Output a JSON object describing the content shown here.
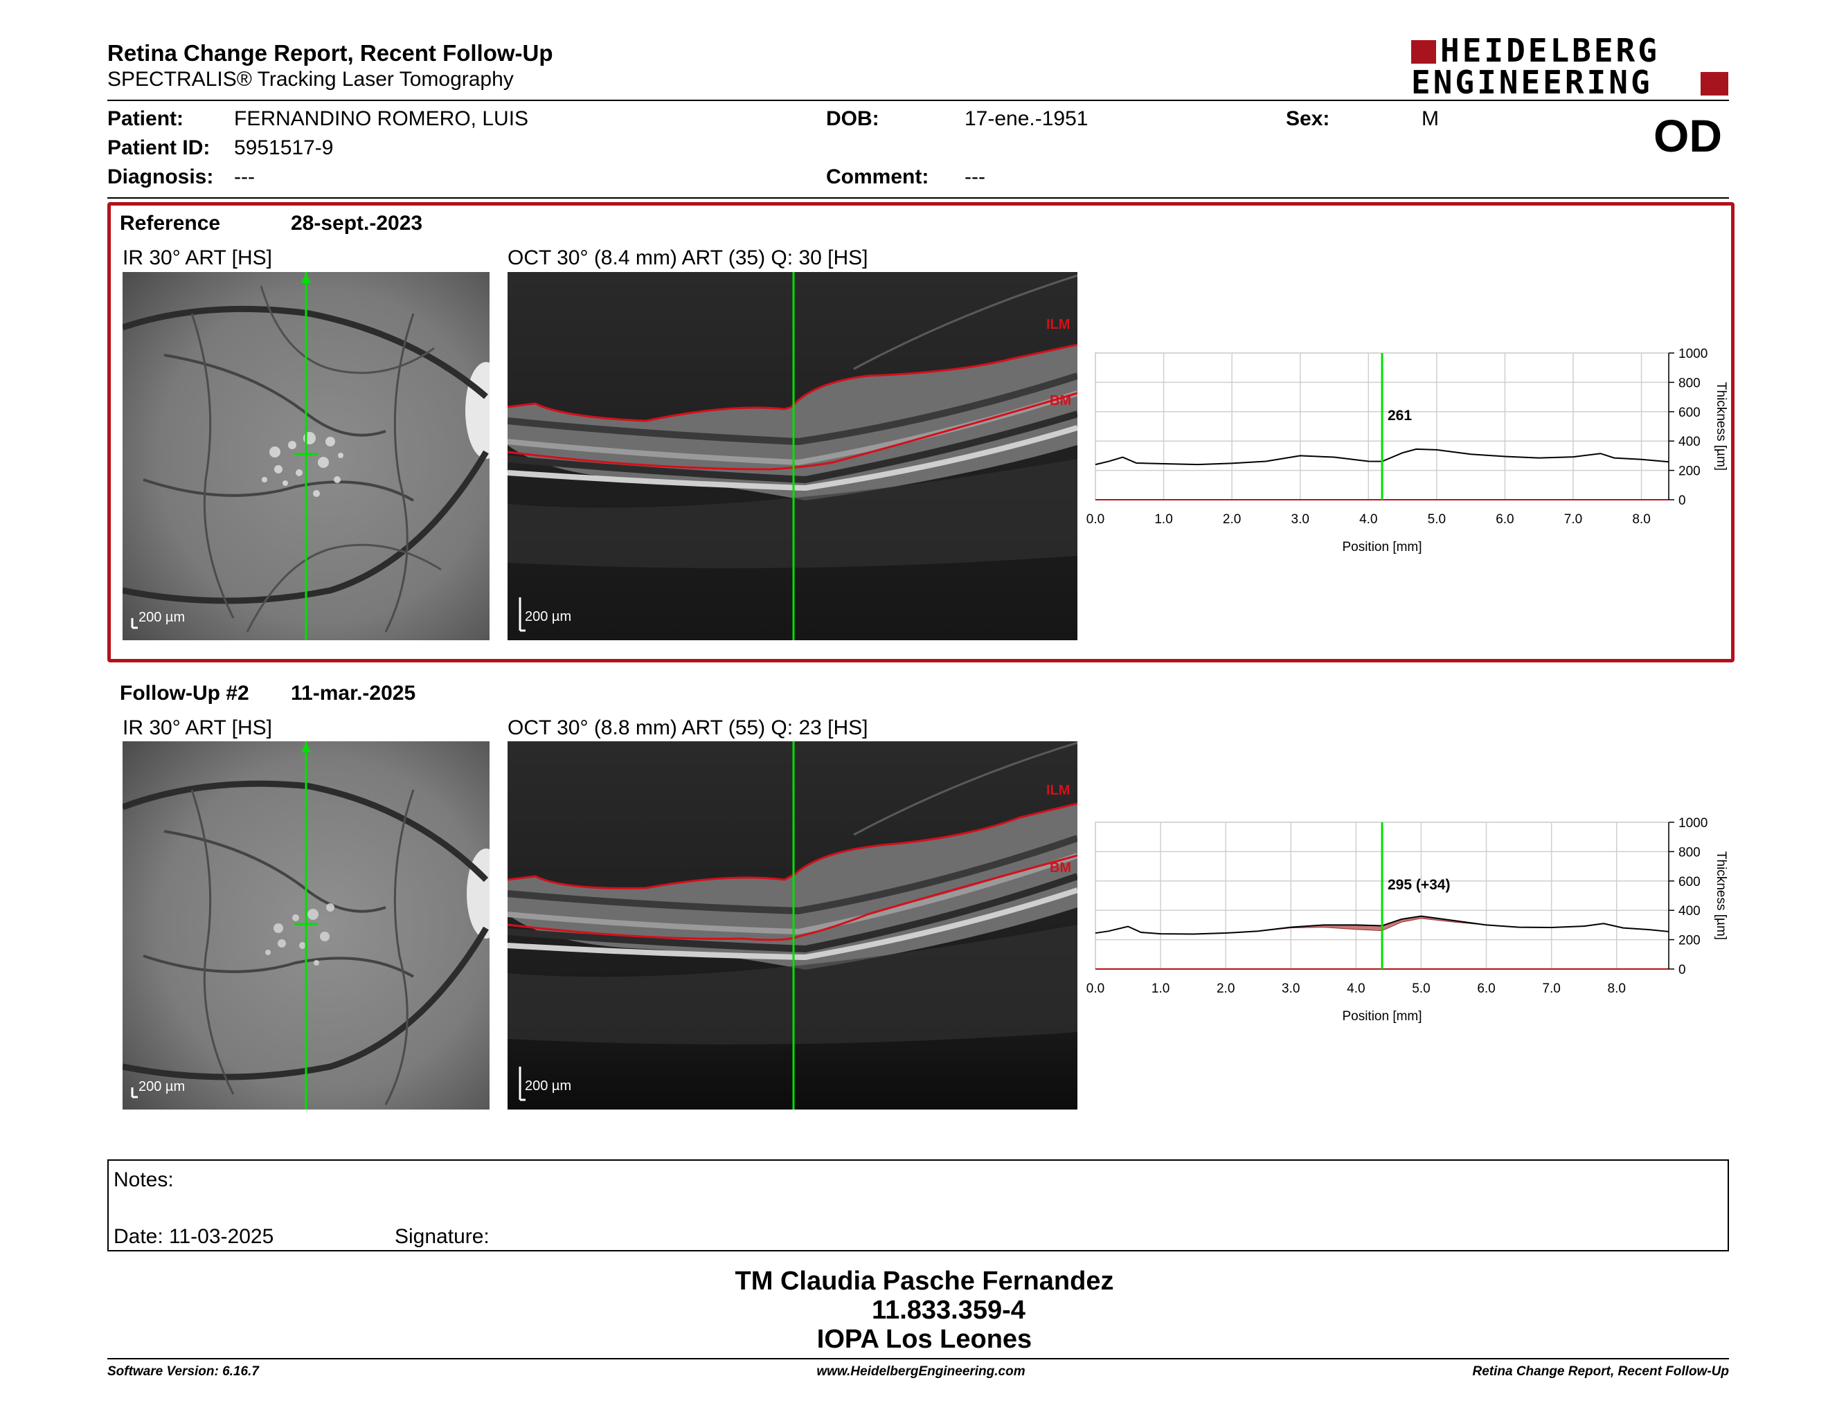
{
  "header": {
    "title": "Retina Change Report, Recent Follow-Up",
    "subtitle": "SPECTRALIS® Tracking Laser Tomography",
    "logo_line1": "HEIDELBERG",
    "logo_line2": "ENGINEERING",
    "eye": "OD"
  },
  "patient": {
    "patient_label": "Patient:",
    "patient_value": "FERNANDINO ROMERO, LUIS",
    "id_label": "Patient ID:",
    "id_value": "5951517-9",
    "diagnosis_label": "Diagnosis:",
    "diagnosis_value": "---",
    "dob_label": "DOB:",
    "dob_value": "17-ene.-1951",
    "comment_label": "Comment:",
    "comment_value": "---",
    "sex_label": "Sex:",
    "sex_value": "M"
  },
  "reference": {
    "label": "Reference",
    "date": "28-sept.-2023",
    "ir_title": "IR 30° ART [HS]",
    "oct_title": "OCT 30° (8.4 mm) ART (35) Q: 30 [HS]",
    "ir_scale": "200 µm",
    "oct_scale": "200 µm",
    "ilm": "ILM",
    "bm": "BM"
  },
  "followup": {
    "label": "Follow-Up #2",
    "date": "11-mar.-2025",
    "ir_title": "IR 30° ART [HS]",
    "oct_title": "OCT 30° (8.8 mm) ART (55) Q: 23 [HS]",
    "ir_scale": "200 µm",
    "oct_scale": "200 µm",
    "ilm": "ILM",
    "bm": "BM"
  },
  "chart_data": [
    {
      "type": "line",
      "xlabel": "Position [mm]",
      "ylabel": "Thickness [µm]",
      "xlim": [
        0.0,
        8.4
      ],
      "ylim": [
        0,
        1000
      ],
      "x_ticks": [
        "0.0",
        "1.0",
        "2.0",
        "3.0",
        "4.0",
        "5.0",
        "6.0",
        "7.0",
        "8.0"
      ],
      "y_ticks": [
        "0",
        "200",
        "400",
        "600",
        "800",
        "1000"
      ],
      "cursor_x": 4.2,
      "cursor_label": "261",
      "grid": true,
      "x": [
        0.0,
        0.2,
        0.4,
        0.6,
        1.0,
        1.5,
        2.0,
        2.5,
        3.0,
        3.5,
        4.0,
        4.2,
        4.5,
        4.7,
        5.0,
        5.5,
        6.0,
        6.5,
        7.0,
        7.4,
        7.6,
        8.0,
        8.4
      ],
      "y": [
        240,
        262,
        290,
        250,
        245,
        240,
        248,
        262,
        300,
        290,
        262,
        261,
        320,
        345,
        340,
        310,
        295,
        285,
        292,
        315,
        285,
        275,
        258
      ]
    },
    {
      "type": "line",
      "xlabel": "Position [mm]",
      "ylabel": "Thickness [µm]",
      "xlim": [
        0.0,
        8.8
      ],
      "ylim": [
        0,
        1000
      ],
      "x_ticks": [
        "0.0",
        "1.0",
        "2.0",
        "3.0",
        "4.0",
        "5.0",
        "6.0",
        "7.0",
        "8.0"
      ],
      "y_ticks": [
        "0",
        "200",
        "400",
        "600",
        "800",
        "1000"
      ],
      "cursor_x": 4.4,
      "cursor_label": "295 (+34)",
      "grid": true,
      "x": [
        0.0,
        0.2,
        0.5,
        0.7,
        1.0,
        1.5,
        2.0,
        2.5,
        3.0,
        3.5,
        4.0,
        4.4,
        4.7,
        5.0,
        5.5,
        6.0,
        6.5,
        7.0,
        7.5,
        7.8,
        8.1,
        8.5,
        8.8
      ],
      "y": [
        245,
        258,
        290,
        250,
        240,
        238,
        245,
        258,
        285,
        300,
        300,
        295,
        340,
        360,
        330,
        300,
        285,
        283,
        292,
        310,
        280,
        268,
        255
      ],
      "reference_y": [
        245,
        258,
        290,
        250,
        240,
        238,
        245,
        258,
        280,
        285,
        270,
        261,
        320,
        345,
        320,
        300,
        285,
        283,
        292,
        310,
        280,
        268,
        255
      ]
    }
  ],
  "notes": {
    "label": "Notes:",
    "date_label": "Date: 11-03-2025",
    "signature_label": "Signature:"
  },
  "stamp": {
    "line1": "TM Claudia Pasche Fernandez",
    "line2": "11.833.359-4",
    "line3": "IOPA Los Leones"
  },
  "footer": {
    "version": "Software Version: 6.16.7",
    "website": "www.HeidelbergEngineering.com",
    "report": "Retina Change Report, Recent Follow-Up"
  },
  "colors": {
    "accent": "#b3121b",
    "cursor": "#00e000",
    "layer": "#d4101a"
  }
}
